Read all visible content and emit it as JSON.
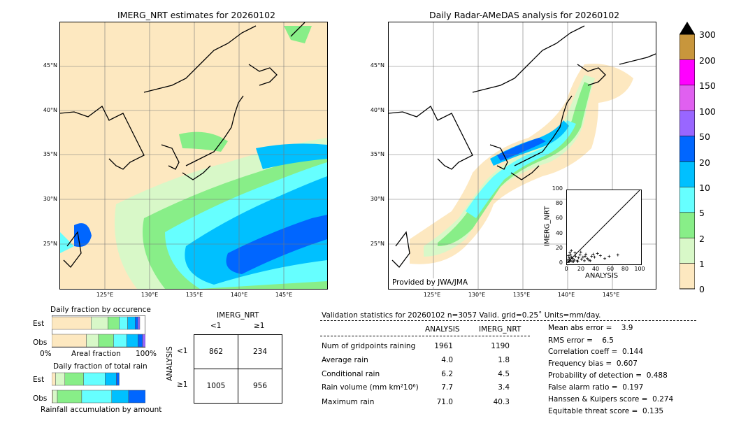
{
  "left_map": {
    "title": "IMERG_NRT estimates for 20260102",
    "lat_labels": [
      "45°N",
      "40°N",
      "35°N",
      "30°N",
      "25°N"
    ],
    "lon_labels": [
      "125°E",
      "130°E",
      "135°E",
      "140°E",
      "145°E"
    ]
  },
  "right_map": {
    "title": "Daily Radar-AMeDAS analysis for 20260102",
    "lat_labels": [
      "45°N",
      "40°N",
      "35°N",
      "30°N",
      "25°N"
    ],
    "lon_labels": [
      "125°E",
      "130°E",
      "135°E",
      "140°E",
      "145°E"
    ],
    "credit": "Provided by JWA/JMA"
  },
  "colorbar": {
    "labels": [
      "300",
      "200",
      "150",
      "100",
      "50",
      "20",
      "10",
      "5",
      "2",
      "1",
      "0"
    ],
    "colors": [
      "#c8963c",
      "#ff00ff",
      "#e060f0",
      "#9966ff",
      "#0066ff",
      "#00c0ff",
      "#66ffff",
      "#88ee88",
      "#d8f8c8",
      "#fde8c0"
    ]
  },
  "chart_data": [
    {
      "type": "scatter",
      "xlabel": "ANALYSIS",
      "ylabel": "IMERG_NRT",
      "xlim": [
        0,
        100
      ],
      "ylim": [
        0,
        100
      ],
      "x_ticks": [
        "0",
        "20",
        "40",
        "60",
        "80",
        "100"
      ],
      "y_ticks": [
        "0",
        "20",
        "40",
        "60",
        "80",
        "100"
      ],
      "points": [
        [
          2,
          1
        ],
        [
          3,
          2
        ],
        [
          4,
          5
        ],
        [
          5,
          3
        ],
        [
          6,
          8
        ],
        [
          7,
          2
        ],
        [
          8,
          6
        ],
        [
          10,
          4
        ],
        [
          12,
          9
        ],
        [
          14,
          3
        ],
        [
          16,
          7
        ],
        [
          18,
          11
        ],
        [
          20,
          5
        ],
        [
          22,
          8
        ],
        [
          24,
          3
        ],
        [
          26,
          12
        ],
        [
          28,
          6
        ],
        [
          30,
          4
        ],
        [
          34,
          9
        ],
        [
          38,
          8
        ],
        [
          42,
          13
        ],
        [
          46,
          10
        ],
        [
          52,
          6
        ],
        [
          58,
          9
        ],
        [
          70,
          11
        ],
        [
          1,
          4
        ],
        [
          3,
          7
        ],
        [
          5,
          11
        ],
        [
          9,
          2
        ],
        [
          11,
          14
        ],
        [
          6,
          17
        ],
        [
          2,
          10
        ],
        [
          4,
          14
        ],
        [
          15,
          2
        ],
        [
          19,
          15
        ],
        [
          25,
          9
        ],
        [
          32,
          3
        ],
        [
          36,
          12
        ]
      ]
    },
    {
      "type": "bar",
      "title": "Daily fraction by occurence",
      "xlabel": "Areal fraction",
      "x_ticks": [
        "0%",
        "100%"
      ],
      "categories": [
        "Est",
        "Obs"
      ],
      "series": [
        {
          "values": [
            0.42,
            0.37
          ]
        },
        {
          "values": [
            0.18,
            0.13
          ]
        },
        {
          "values": [
            0.12,
            0.16
          ]
        },
        {
          "values": [
            0.09,
            0.14
          ]
        },
        {
          "values": [
            0.08,
            0.12
          ]
        },
        {
          "values": [
            0.03,
            0.05
          ]
        },
        {
          "values": [
            0.02,
            0.03
          ]
        }
      ],
      "colors": [
        "#fde8c0",
        "#d8f8c8",
        "#88ee88",
        "#66ffff",
        "#00c0ff",
        "#0066ff",
        "#9966ff"
      ]
    },
    {
      "type": "bar",
      "title": "Daily fraction of total rain",
      "xlabel": "Rainfall accumulation by amount",
      "categories": [
        "Est",
        "Obs"
      ],
      "series": [
        {
          "values": [
            0.04,
            0.01
          ]
        },
        {
          "values": [
            0.1,
            0.05
          ]
        },
        {
          "values": [
            0.2,
            0.26
          ]
        },
        {
          "values": [
            0.23,
            0.32
          ]
        },
        {
          "values": [
            0.12,
            0.18
          ]
        },
        {
          "values": [
            0.03,
            0.18
          ]
        }
      ],
      "colors": [
        "#fde8c0",
        "#d8f8c8",
        "#88ee88",
        "#66ffff",
        "#00c0ff",
        "#0066ff"
      ]
    },
    {
      "type": "table",
      "title": "IMERG_NRT",
      "row_axis_label": "ANALYSIS",
      "col_headers": [
        "<1",
        "≥1"
      ],
      "row_headers": [
        "<1",
        "≥1"
      ],
      "cells": [
        [
          "862",
          "234"
        ],
        [
          "1005",
          "956"
        ]
      ]
    }
  ],
  "validation": {
    "header": "Validation statistics for 20260102  n=3057 Valid. grid=0.25˚ Units=mm/day.",
    "col_analysis": "ANALYSIS",
    "col_imerg": "IMERG_NRT",
    "rows": [
      {
        "label": "Num of gridpoints raining",
        "analysis": "1961",
        "imerg": "1190"
      },
      {
        "label": "Average rain",
        "analysis": "4.0",
        "imerg": "1.8"
      },
      {
        "label": "Conditional rain",
        "analysis": "6.2",
        "imerg": "4.5"
      },
      {
        "label": "Rain volume (mm km²10⁶)",
        "analysis": "7.7",
        "imerg": "3.4"
      },
      {
        "label": "Maximum rain",
        "analysis": "71.0",
        "imerg": "40.3"
      }
    ],
    "scores": [
      "Mean abs error =    3.9",
      "RMS error =    6.5",
      "Correlation coeff =  0.144",
      "Frequency bias =  0.607",
      "Probability of detection =  0.488",
      "False alarm ratio =  0.197",
      "Hanssen & Kuipers score =  0.274",
      "Equitable threat score =  0.135"
    ]
  }
}
